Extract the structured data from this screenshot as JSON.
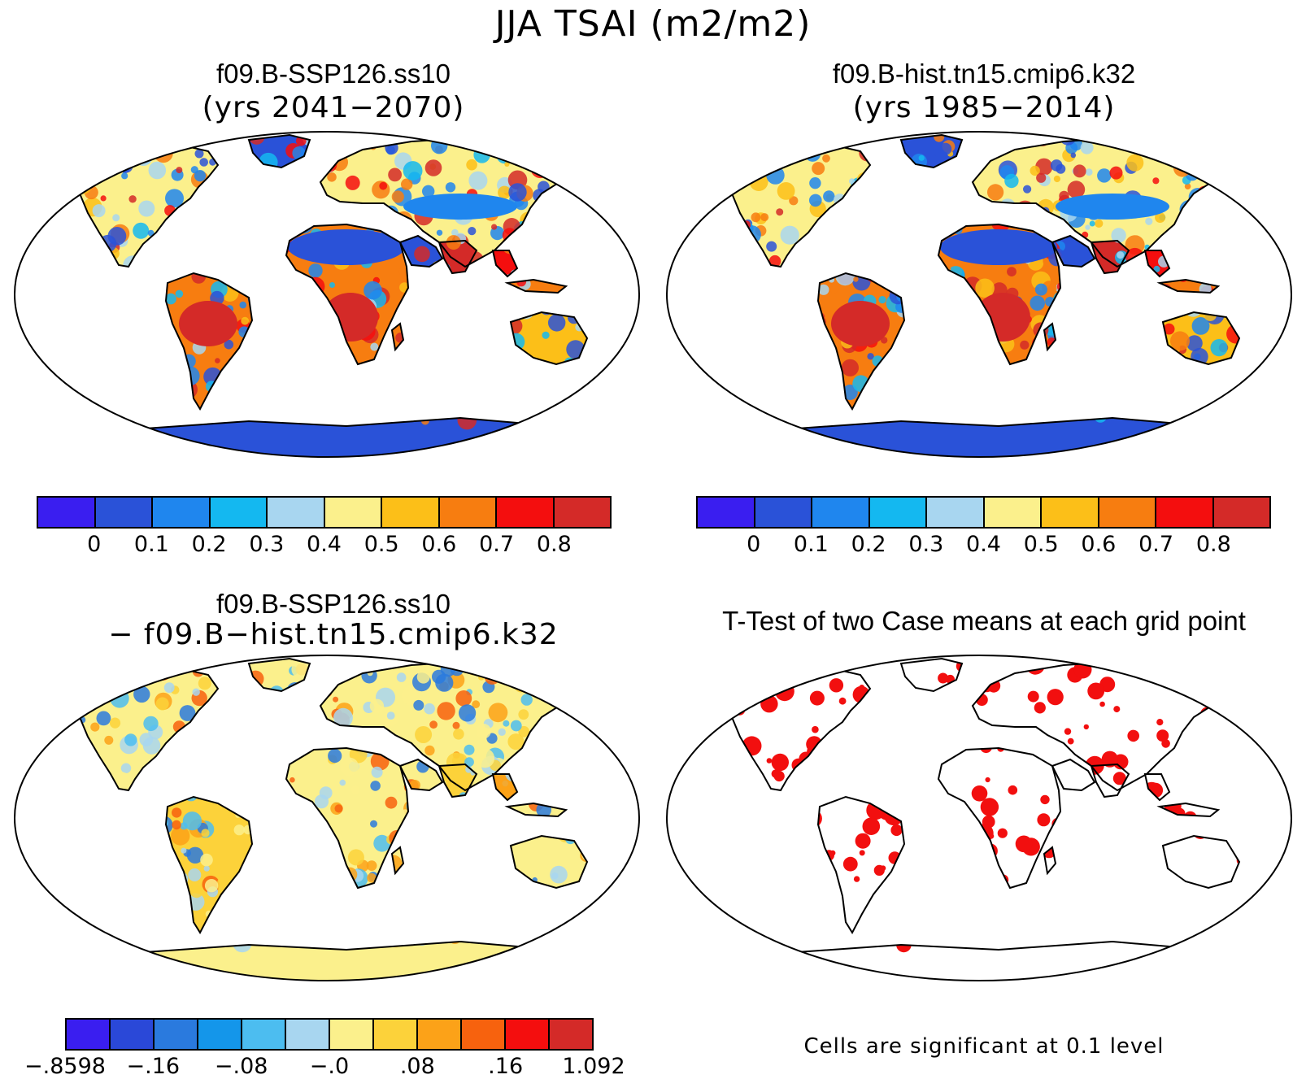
{
  "figure": {
    "title": "JJA TSAI (m2/m2)"
  },
  "panels": {
    "top_left": {
      "title": "f09.B-SSP126.ss10",
      "subtitle": "(yrs 2041−2070)"
    },
    "top_right": {
      "title": "f09.B-hist.tn15.cmip6.k32",
      "subtitle": "(yrs 1985−2014)"
    },
    "bottom_left": {
      "title": "f09.B-SSP126.ss10",
      "subtitle": "− f09.B−hist.tn15.cmip6.k32"
    },
    "bottom_right": {
      "title": "T-Test of two Case means at each grid point",
      "note": "Cells are significant at 0.1 level"
    }
  },
  "colorbars": {
    "abs": {
      "colors": [
        "#3a1ef0",
        "#2a52d8",
        "#1f86ee",
        "#14b8f0",
        "#a8d6f0",
        "#fbf08c",
        "#fcbf18",
        "#f77d10",
        "#f40e0e",
        "#d42a28"
      ],
      "labels": [
        "0",
        "0.1",
        "0.2",
        "0.3",
        "0.4",
        "0.5",
        "0.6",
        "0.7",
        "0.8"
      ]
    },
    "diff": {
      "colors": [
        "#3a1ef0",
        "#2a48d8",
        "#2a7ade",
        "#1496ea",
        "#4cbdf0",
        "#a8d6f0",
        "#fbf08c",
        "#fcd23a",
        "#fca218",
        "#f7620e",
        "#f40e0e",
        "#d42a28"
      ],
      "labels": [
        "−.8598",
        "−.16",
        "−.08",
        "−.0",
        ".08",
        ".16",
        "1.092"
      ]
    }
  },
  "map_colors": {
    "frame": "#000000",
    "coast": "#000000",
    "ttest_significant": "#f20f0f"
  }
}
